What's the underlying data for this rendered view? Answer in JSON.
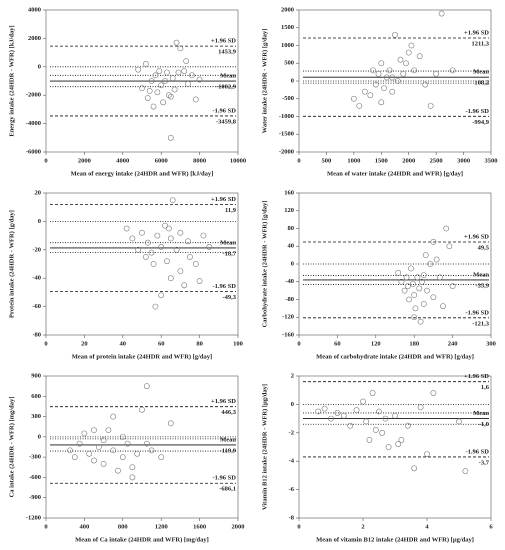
{
  "chart_data": [
    {
      "type": "scatter",
      "y_label": "Energy intake (24HDR - WFR) [kJ/day]",
      "x_label": "Mean of energy intake (24HDR and WFR) [kJ/day]",
      "xlim": [
        0,
        10000
      ],
      "xticks": [
        0,
        2000,
        4000,
        6000,
        8000,
        10000
      ],
      "ylim": [
        -6000,
        4000
      ],
      "yticks": [
        4000,
        2000,
        0,
        -2000,
        -4000,
        -6000
      ],
      "x": [
        4800,
        5000,
        5200,
        5300,
        5500,
        5600,
        5700,
        5800,
        5900,
        6000,
        6100,
        6200,
        6300,
        6400,
        6500,
        6600,
        6700,
        6800,
        7000,
        7200,
        7400,
        7600,
        7800,
        8000,
        6500,
        5400,
        6900,
        7300
      ],
      "y": [
        -200,
        -1500,
        200,
        -2200,
        -1000,
        -2800,
        -600,
        -1800,
        -300,
        -1300,
        -2500,
        -1000,
        -400,
        -2000,
        -5000,
        -800,
        -1600,
        1700,
        1300,
        -300,
        -1200,
        -600,
        -2300,
        -900,
        -2100,
        -1700,
        -400,
        400
      ],
      "lines": [
        {
          "value": 1453.9,
          "style": "dashed",
          "label": "+1.96 SD",
          "value_label": "1453,9"
        },
        {
          "value": 0,
          "style": "dotted"
        },
        {
          "value": -600,
          "style": "dotted"
        },
        {
          "value": -1002.9,
          "style": "solid",
          "label": "Mean",
          "value_label": "-1002,9"
        },
        {
          "value": -1400,
          "style": "dotted"
        },
        {
          "value": -3459.8,
          "style": "dashed",
          "label": "-1.96 SD",
          "value_label": "-3459,8"
        }
      ]
    },
    {
      "type": "scatter",
      "y_label": "Water intake (24HDR - WFR) [g/day]",
      "x_label": "Mean of water intake (24HDR and WFR) [g/day]",
      "xlim": [
        0,
        3500
      ],
      "xticks": [
        0,
        500,
        1000,
        1500,
        2000,
        2500,
        3000,
        3500
      ],
      "ylim": [
        -2000,
        2000
      ],
      "yticks": [
        2000,
        1500,
        1000,
        500,
        0,
        -500,
        -1000,
        -1500,
        -2000
      ],
      "x": [
        1000,
        1100,
        1200,
        1300,
        1350,
        1400,
        1450,
        1500,
        1550,
        1600,
        1650,
        1700,
        1750,
        1800,
        1850,
        1900,
        1950,
        2000,
        2050,
        2100,
        2200,
        2300,
        2400,
        2500,
        2600,
        1500,
        1700,
        2800
      ],
      "y": [
        -500,
        -700,
        -300,
        -400,
        300,
        -100,
        200,
        500,
        -200,
        100,
        300,
        -300,
        1300,
        0,
        600,
        200,
        500,
        800,
        1000,
        300,
        700,
        -100,
        -700,
        200,
        1900,
        -600,
        100,
        300
      ],
      "lines": [
        {
          "value": 1211.3,
          "style": "dashed",
          "label": "+1.96 SD",
          "value_label": "1211,3"
        },
        {
          "value": 280,
          "style": "dotted"
        },
        {
          "value": 108.2,
          "style": "solid",
          "label": "Mean",
          "value_label": "108,2"
        },
        {
          "value": 0,
          "style": "dotted"
        },
        {
          "value": -60,
          "style": "dotted"
        },
        {
          "value": -994.9,
          "style": "dashed",
          "label": "-1.96 SD",
          "value_label": "-994,9"
        }
      ]
    },
    {
      "type": "scatter",
      "y_label": "Protein intake (24HDR - WFR) [g/day]",
      "x_label": "Mean of protein intake (24HDR and WFR) [g/day]",
      "xlim": [
        0,
        100
      ],
      "xticks": [
        0,
        20,
        40,
        60,
        80,
        100
      ],
      "ylim": [
        -80,
        20
      ],
      "yticks": [
        20,
        0,
        -20,
        -40,
        -60,
        -80
      ],
      "x": [
        42,
        45,
        48,
        50,
        52,
        53,
        55,
        56,
        58,
        60,
        60,
        62,
        63,
        65,
        65,
        66,
        68,
        70,
        70,
        72,
        74,
        75,
        78,
        80,
        82,
        85,
        57,
        64
      ],
      "y": [
        -5,
        -12,
        -20,
        -8,
        -25,
        -15,
        -22,
        -30,
        -10,
        -52,
        -18,
        -3,
        -28,
        -40,
        -12,
        15,
        -20,
        -8,
        -35,
        -45,
        -14,
        -25,
        -30,
        -42,
        -10,
        -18,
        -60,
        -5
      ],
      "lines": [
        {
          "value": 11.9,
          "style": "dashed",
          "label": "+1.96 SD",
          "value_label": "11,9"
        },
        {
          "value": 0,
          "style": "dotted"
        },
        {
          "value": -15,
          "style": "dotted"
        },
        {
          "value": -18.7,
          "style": "solid",
          "label": "Mean",
          "value_label": "-18,7"
        },
        {
          "value": -22,
          "style": "dotted"
        },
        {
          "value": -49.3,
          "style": "dashed",
          "label": "-1.96 SD",
          "value_label": "-49,3"
        }
      ]
    },
    {
      "type": "scatter",
      "y_label": "Carbohydrate intake (24HDR - WFR) [g/day]",
      "x_label": "Mean of carbohydrate intake (24HDR and WFR) [g/day]",
      "xlim": [
        0,
        300
      ],
      "xticks": [
        0,
        60,
        120,
        180,
        240,
        300
      ],
      "ylim": [
        -160,
        160
      ],
      "yticks": [
        160,
        120,
        80,
        40,
        0,
        -40,
        -80,
        -120,
        -160
      ],
      "x": [
        155,
        160,
        165,
        168,
        170,
        172,
        175,
        178,
        180,
        182,
        185,
        188,
        190,
        192,
        195,
        198,
        200,
        205,
        210,
        215,
        220,
        225,
        230,
        235,
        240,
        180,
        195,
        210
      ],
      "y": [
        -20,
        -40,
        -60,
        -30,
        -50,
        -80,
        -10,
        -45,
        -70,
        -100,
        -30,
        -55,
        -130,
        -40,
        -90,
        20,
        -60,
        0,
        -75,
        10,
        -30,
        -95,
        80,
        40,
        -50,
        -120,
        -25,
        50
      ],
      "lines": [
        {
          "value": 49.5,
          "style": "dashed",
          "label": "+1.96 SD",
          "value_label": "49,5"
        },
        {
          "value": 0,
          "style": "dotted"
        },
        {
          "value": -26,
          "style": "dotted"
        },
        {
          "value": -35.9,
          "style": "solid",
          "label": "Mean",
          "value_label": "-35,9"
        },
        {
          "value": -46,
          "style": "dotted"
        },
        {
          "value": -121.3,
          "style": "dashed",
          "label": "-1.96 SD",
          "value_label": "-121,3"
        }
      ]
    },
    {
      "type": "scatter",
      "y_label": "Ca intake (24HDR - WFR) [mg/day]",
      "x_label": "Mean of Ca intake (24HDR and WFR) [mg/day]",
      "xlim": [
        0,
        2000
      ],
      "xticks": [
        0,
        400,
        800,
        1200,
        1600,
        2000
      ],
      "ylim": [
        -1200,
        900
      ],
      "yticks": [
        900,
        600,
        300,
        0,
        -300,
        -600,
        -900,
        -1200
      ],
      "x": [
        250,
        300,
        350,
        400,
        450,
        500,
        550,
        600,
        650,
        700,
        700,
        750,
        800,
        850,
        900,
        950,
        1000,
        1050,
        1100,
        1200,
        1300,
        600,
        800,
        500,
        900,
        1050
      ],
      "y": [
        -200,
        -300,
        -100,
        50,
        -250,
        100,
        -150,
        -400,
        100,
        -200,
        300,
        -500,
        -300,
        -100,
        -600,
        -250,
        400,
        750,
        -200,
        -300,
        200,
        -50,
        0,
        -350,
        -450,
        -100
      ],
      "lines": [
        {
          "value": 446.3,
          "style": "dashed",
          "label": "+1.96 SD",
          "value_label": "446,3"
        },
        {
          "value": 0,
          "style": "dotted"
        },
        {
          "value": -30,
          "style": "dotted"
        },
        {
          "value": -119.9,
          "style": "solid",
          "label": "Mean",
          "value_label": "-119,9"
        },
        {
          "value": -210,
          "style": "dotted"
        },
        {
          "value": -686.1,
          "style": "dashed",
          "label": "-1.96 SD",
          "value_label": "-686,1"
        }
      ]
    },
    {
      "type": "scatter",
      "y_label": "Vitamin B12 intake (24HDR - WFR) [µg/day]",
      "x_label": "Mean of vitamin B12 intake (24HDR and WFR) [µg/day]",
      "xlim": [
        0,
        6
      ],
      "xticks": [
        0,
        2,
        4,
        6
      ],
      "ylim": [
        -8,
        2
      ],
      "yticks": [
        2,
        0,
        -2,
        -4,
        -6,
        -8
      ],
      "x": [
        0.6,
        0.8,
        1.0,
        1.2,
        1.4,
        1.6,
        1.8,
        2.0,
        2.1,
        2.2,
        2.3,
        2.4,
        2.5,
        2.6,
        2.8,
        3.0,
        3.2,
        3.4,
        3.6,
        3.8,
        4.0,
        4.2,
        5.0,
        5.2,
        2.7,
        3.1
      ],
      "y": [
        -0.5,
        -0.3,
        -1.0,
        -0.6,
        -0.8,
        -1.5,
        -0.4,
        0.2,
        -1.2,
        -2.5,
        0.8,
        -1.8,
        -0.5,
        -2.0,
        -3.0,
        -0.8,
        -2.5,
        -1.5,
        -4.5,
        -0.2,
        -3.5,
        0.8,
        -1.2,
        -4.7,
        -1.0,
        -2.8
      ],
      "lines": [
        {
          "value": 1.6,
          "style": "dashed",
          "label": "+1.96 SD",
          "value_label": "1,6"
        },
        {
          "value": 0,
          "style": "dotted"
        },
        {
          "value": -0.6,
          "style": "dotted"
        },
        {
          "value": -1.0,
          "style": "solid",
          "label": "Mean",
          "value_label": "-1,0"
        },
        {
          "value": -1.4,
          "style": "dotted"
        },
        {
          "value": -3.7,
          "style": "dashed",
          "label": "-1.96 SD",
          "value_label": "-3,7"
        }
      ]
    }
  ]
}
